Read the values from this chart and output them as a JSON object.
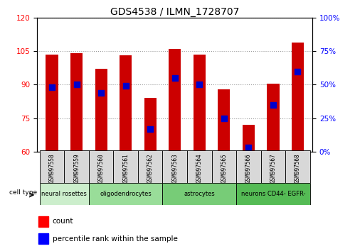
{
  "title": "GDS4538 / ILMN_1728707",
  "samples": [
    "GSM997558",
    "GSM997559",
    "GSM997560",
    "GSM997561",
    "GSM997562",
    "GSM997563",
    "GSM997564",
    "GSM997565",
    "GSM997566",
    "GSM997567",
    "GSM997568"
  ],
  "counts": [
    103.5,
    104.0,
    97.0,
    103.0,
    84.0,
    106.0,
    103.5,
    88.0,
    72.0,
    90.5,
    109.0
  ],
  "percentile_ranks": [
    48,
    50,
    44,
    49,
    17,
    55,
    50,
    25,
    3,
    35,
    60
  ],
  "ylim_left": [
    60,
    120
  ],
  "ylim_right": [
    0,
    100
  ],
  "yticks_left": [
    60,
    75,
    90,
    105,
    120
  ],
  "yticks_right": [
    0,
    25,
    50,
    75,
    100
  ],
  "bar_color": "#cc0000",
  "dot_color": "#0000cc",
  "bar_width": 0.5,
  "dot_size": 30,
  "grid_color": "black",
  "grid_alpha": 0.4,
  "grid_linestyle": ":",
  "cell_type_data": [
    {
      "label": "neural rosettes",
      "start": 0,
      "end": 2,
      "color": "#cceecc"
    },
    {
      "label": "oligodendrocytes",
      "start": 2,
      "end": 5,
      "color": "#99dd99"
    },
    {
      "label": "astrocytes",
      "start": 5,
      "end": 8,
      "color": "#77cc77"
    },
    {
      "label": "neurons CD44- EGFR-",
      "start": 8,
      "end": 11,
      "color": "#55bb55"
    }
  ],
  "sample_box_color": "#d8d8d8",
  "legend_red_label": "count",
  "legend_blue_label": "percentile rank within the sample",
  "cell_type_label": "cell type"
}
